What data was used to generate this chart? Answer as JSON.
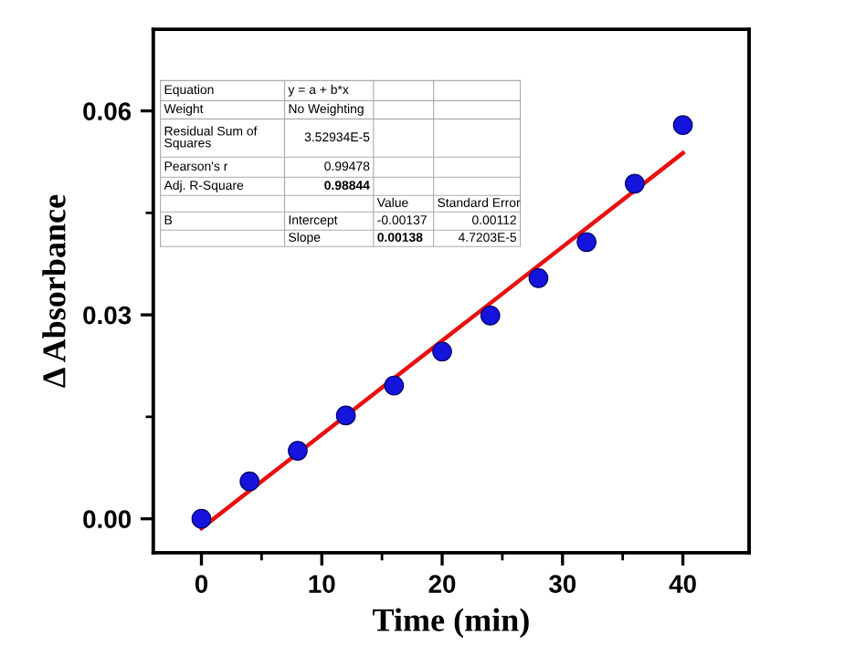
{
  "chart_data": {
    "type": "scatter",
    "xlabel": "Time (min)",
    "ylabel": "Δ Absorbance",
    "xlim": [
      -4,
      45.5
    ],
    "ylim": [
      -0.005,
      0.072
    ],
    "xticks": [
      0,
      10,
      20,
      30,
      40,
      {
        "value": 5,
        "label": null
      },
      {
        "value": 15,
        "label": null
      },
      {
        "value": 25,
        "label": null
      },
      {
        "value": 35,
        "label": null
      }
    ],
    "yticks": [
      {
        "value": 0,
        "label": "0.00"
      },
      {
        "value": 0.03,
        "label": "0.03"
      },
      {
        "value": 0.06,
        "label": "0.06"
      },
      {
        "value": 0.015,
        "label": null
      },
      {
        "value": 0.045,
        "label": null
      }
    ],
    "grid": false,
    "legend": false,
    "marker": "circle",
    "series": [
      {
        "color": "#1414dc",
        "x": [
          0,
          4,
          8,
          12,
          16,
          20,
          24,
          28,
          32,
          36,
          40
        ],
        "values": [
          0,
          0.0055,
          0.01,
          0.0152,
          0.0196,
          0.0246,
          0.0299,
          0.0354,
          0.0407,
          0.0493,
          0.0579
        ]
      },
      {
        "type": "line",
        "color": "#e81010",
        "marker": "none",
        "line_style": "solid",
        "x": [
          0,
          40
        ],
        "values": [
          -0.0014,
          0.0538
        ]
      }
    ],
    "annotations": [
      "Equation",
      "y = a + b*x",
      "Weight",
      "No Weighting",
      "Residual Sum of\nSquares",
      "3.52934E-5",
      "Pearson's r",
      "0.99478",
      "Adj. R-Square",
      "0.98844",
      "Value",
      "Standard Error",
      "B",
      "Intercept",
      "-0.00137",
      "0.00112",
      "Slope",
      "0.00138",
      "4.7203E-5"
    ]
  }
}
